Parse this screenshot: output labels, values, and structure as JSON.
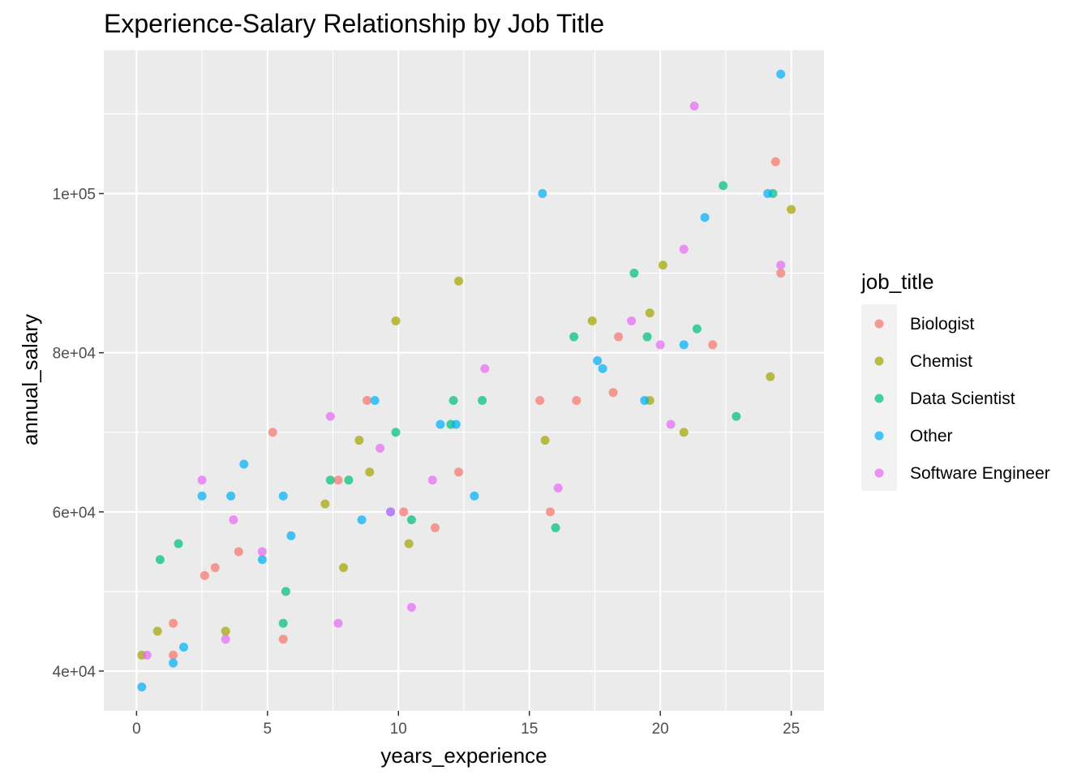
{
  "chart_data": {
    "type": "scatter",
    "title": "Experience-Salary Relationship by Job Title",
    "xlabel": "years_experience",
    "ylabel": "annual_salary",
    "xlim": [
      -1.25,
      26.25
    ],
    "ylim": [
      35000,
      118000
    ],
    "x_ticks": [
      0,
      5,
      10,
      15,
      20,
      25
    ],
    "x_tick_labels": [
      "0",
      "5",
      "10",
      "15",
      "20",
      "25"
    ],
    "y_ticks": [
      40000,
      60000,
      80000,
      100000
    ],
    "y_tick_labels": [
      "4e+04",
      "6e+04",
      "8e+04",
      "1e+05"
    ],
    "grid": true,
    "legend_title": "job_title",
    "legend_position": "right",
    "series": [
      {
        "name": "Biologist",
        "color": "#F8766D",
        "points": [
          [
            1.4,
            46000
          ],
          [
            1.4,
            42000
          ],
          [
            2.6,
            52000
          ],
          [
            3.0,
            53000
          ],
          [
            3.9,
            55000
          ],
          [
            5.2,
            70000
          ],
          [
            5.6,
            44000
          ],
          [
            7.7,
            64000
          ],
          [
            8.8,
            74000
          ],
          [
            10.2,
            60000
          ],
          [
            11.4,
            58000
          ],
          [
            12.3,
            65000
          ],
          [
            15.4,
            74000
          ],
          [
            15.8,
            60000
          ],
          [
            16.8,
            74000
          ],
          [
            18.2,
            75000
          ],
          [
            18.4,
            82000
          ],
          [
            22.0,
            81000
          ],
          [
            24.4,
            104000
          ],
          [
            24.6,
            90000
          ]
        ]
      },
      {
        "name": "Chemist",
        "color": "#A3A500",
        "points": [
          [
            0.2,
            42000
          ],
          [
            0.8,
            45000
          ],
          [
            3.4,
            45000
          ],
          [
            7.2,
            61000
          ],
          [
            7.9,
            53000
          ],
          [
            8.5,
            69000
          ],
          [
            8.9,
            65000
          ],
          [
            9.9,
            84000
          ],
          [
            10.4,
            56000
          ],
          [
            12.3,
            89000
          ],
          [
            15.6,
            69000
          ],
          [
            17.4,
            84000
          ],
          [
            19.6,
            85000
          ],
          [
            19.6,
            74000
          ],
          [
            20.1,
            91000
          ],
          [
            20.9,
            70000
          ],
          [
            24.2,
            77000
          ],
          [
            25.0,
            98000
          ]
        ]
      },
      {
        "name": "Data Scientist",
        "color": "#00BF7D",
        "points": [
          [
            0.9,
            54000
          ],
          [
            1.6,
            56000
          ],
          [
            5.6,
            46000
          ],
          [
            5.7,
            50000
          ],
          [
            7.4,
            64000
          ],
          [
            8.1,
            64000
          ],
          [
            9.9,
            70000
          ],
          [
            10.5,
            59000
          ],
          [
            12.0,
            71000
          ],
          [
            12.1,
            74000
          ],
          [
            13.2,
            74000
          ],
          [
            16.0,
            58000
          ],
          [
            16.7,
            82000
          ],
          [
            19.0,
            90000
          ],
          [
            19.5,
            82000
          ],
          [
            21.4,
            83000
          ],
          [
            22.4,
            101000
          ],
          [
            22.9,
            72000
          ],
          [
            24.3,
            100000
          ]
        ]
      },
      {
        "name": "Other",
        "color": "#00B0F6",
        "points": [
          [
            0.2,
            38000
          ],
          [
            1.4,
            41000
          ],
          [
            1.8,
            43000
          ],
          [
            2.5,
            62000
          ],
          [
            3.6,
            62000
          ],
          [
            4.1,
            66000
          ],
          [
            4.8,
            54000
          ],
          [
            5.6,
            62000
          ],
          [
            5.9,
            57000
          ],
          [
            8.6,
            59000
          ],
          [
            9.1,
            74000
          ],
          [
            9.7,
            60000
          ],
          [
            11.6,
            71000
          ],
          [
            12.2,
            71000
          ],
          [
            12.9,
            62000
          ],
          [
            15.5,
            100000
          ],
          [
            17.6,
            79000
          ],
          [
            17.8,
            78000
          ],
          [
            19.4,
            74000
          ],
          [
            20.9,
            81000
          ],
          [
            21.7,
            97000
          ],
          [
            24.1,
            100000
          ],
          [
            24.6,
            115000
          ]
        ]
      },
      {
        "name": "Software Engineer",
        "color": "#E76BF3",
        "points": [
          [
            0.4,
            42000
          ],
          [
            2.5,
            64000
          ],
          [
            3.4,
            44000
          ],
          [
            3.7,
            59000
          ],
          [
            4.8,
            55000
          ],
          [
            7.4,
            72000
          ],
          [
            7.7,
            46000
          ],
          [
            9.3,
            68000
          ],
          [
            9.7,
            60000
          ],
          [
            10.5,
            48000
          ],
          [
            11.3,
            64000
          ],
          [
            13.3,
            78000
          ],
          [
            16.1,
            63000
          ],
          [
            18.9,
            84000
          ],
          [
            20.0,
            81000
          ],
          [
            20.4,
            71000
          ],
          [
            20.9,
            93000
          ],
          [
            21.3,
            111000
          ],
          [
            24.6,
            91000
          ]
        ]
      }
    ]
  }
}
